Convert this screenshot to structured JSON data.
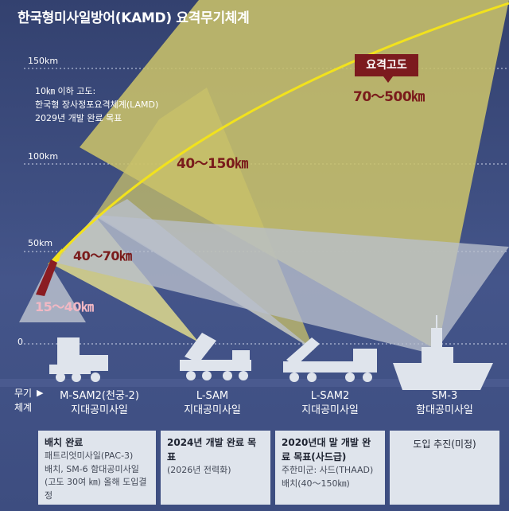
{
  "title": "한국형미사일방어(KAMD) 요격무기체계",
  "altitude_ticks": [
    "150km",
    "100km",
    "50km",
    "0"
  ],
  "note": {
    "line1": "10㎞ 이하 고도:",
    "line2": "한국형 장사정포요격체계(LAMD)",
    "line3": "2029년 개발 완료 목표"
  },
  "intercept_badge": "요격고도",
  "ranges": {
    "sm3": "70～500㎞",
    "lsam2": "40～150㎞",
    "lsam": "40～70㎞",
    "msam2": "15～40㎞"
  },
  "weapon_system_label": {
    "line1": "무기",
    "line2": "체계",
    "arrow": "▶"
  },
  "systems": [
    {
      "name": "M-SAM2(천궁-2)",
      "type": "지대공미사일"
    },
    {
      "name": "L-SAM",
      "type": "지대공미사일"
    },
    {
      "name": "L-SAM2",
      "type": "지대공미사일"
    },
    {
      "name": "SM-3",
      "type": "함대공미사일"
    }
  ],
  "status": [
    {
      "headline": "배치 완료",
      "details": [
        "패트리엇미사일(PAC-3)",
        "배치, SM-6 함대공미사일",
        "(고도 30여 ㎞) 올해 도입결정"
      ]
    },
    {
      "headline": "2024년 개발 완료 목표",
      "details": [
        "(2026년 전력화)"
      ]
    },
    {
      "headline": "2020년대 말 개발 완료 목표(사드급)",
      "details": [
        "주한미군: 사드(THAAD)",
        "배치(40～150㎞)"
      ]
    },
    {
      "headline": "도입 추진(미정)",
      "details": []
    }
  ],
  "colors": {
    "background": "#3f4f82",
    "arc": "#f2e21c",
    "cone_yellow": "#c9c26a",
    "cone_gray": "#b9bfcc",
    "badge": "#7c1a1e",
    "range_text": "#7a1b1b",
    "range_text_low": "#f2b8c4",
    "status_box": "#dfe4ec"
  }
}
